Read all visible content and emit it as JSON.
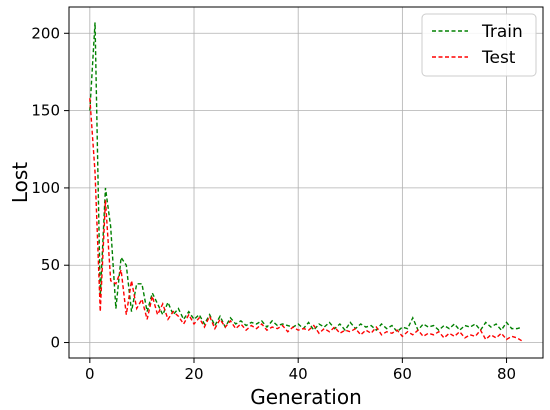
{
  "chart_data": {
    "type": "line",
    "xlabel": "Generation",
    "ylabel": "Lost",
    "xlim": [
      -4,
      87
    ],
    "ylim": [
      -10,
      217
    ],
    "xticks": [
      0,
      20,
      40,
      60,
      80
    ],
    "yticks": [
      0,
      50,
      100,
      150,
      200
    ],
    "grid": true,
    "legend_position": "top-right",
    "series": [
      {
        "name": "Train",
        "color": "#008000",
        "style": "dashed",
        "x": [
          0,
          1,
          2,
          3,
          4,
          5,
          6,
          7,
          8,
          9,
          10,
          11,
          12,
          13,
          14,
          15,
          16,
          17,
          18,
          19,
          20,
          21,
          22,
          23,
          24,
          25,
          26,
          27,
          28,
          29,
          30,
          31,
          32,
          33,
          34,
          35,
          36,
          37,
          38,
          39,
          40,
          41,
          42,
          43,
          44,
          45,
          46,
          47,
          48,
          49,
          50,
          51,
          52,
          53,
          54,
          55,
          56,
          57,
          58,
          59,
          60,
          61,
          62,
          63,
          64,
          65,
          66,
          67,
          68,
          69,
          70,
          71,
          72,
          73,
          74,
          75,
          76,
          77,
          78,
          79,
          80,
          81,
          82,
          83
        ],
        "values": [
          150,
          207,
          30,
          100,
          75,
          22,
          55,
          50,
          20,
          38,
          38,
          20,
          32,
          25,
          18,
          26,
          18,
          22,
          15,
          20,
          15,
          18,
          12,
          18,
          11,
          17,
          10,
          16,
          12,
          14,
          11,
          13,
          12,
          14,
          10,
          14,
          11,
          12,
          11,
          10,
          12,
          9,
          13,
          8,
          12,
          10,
          13,
          9,
          12,
          8,
          13,
          9,
          12,
          10,
          11,
          8,
          12,
          9,
          11,
          7,
          10,
          9,
          16,
          8,
          12,
          10,
          11,
          8,
          11,
          9,
          12,
          8,
          11,
          10,
          12,
          8,
          13,
          10,
          12,
          8,
          13,
          9,
          9,
          10
        ]
      },
      {
        "name": "Test",
        "color": "#ff0000",
        "style": "dashed",
        "x": [
          0,
          1,
          2,
          3,
          4,
          5,
          6,
          7,
          8,
          9,
          10,
          11,
          12,
          13,
          14,
          15,
          16,
          17,
          18,
          19,
          20,
          21,
          22,
          23,
          24,
          25,
          26,
          27,
          28,
          29,
          30,
          31,
          32,
          33,
          34,
          35,
          36,
          37,
          38,
          39,
          40,
          41,
          42,
          43,
          44,
          45,
          46,
          47,
          48,
          49,
          50,
          51,
          52,
          53,
          54,
          55,
          56,
          57,
          58,
          59,
          60,
          61,
          62,
          63,
          64,
          65,
          66,
          67,
          68,
          69,
          70,
          71,
          72,
          73,
          74,
          75,
          76,
          77,
          78,
          79,
          80,
          81,
          82,
          83
        ],
        "values": [
          158,
          110,
          20,
          92,
          40,
          38,
          47,
          18,
          40,
          22,
          28,
          15,
          30,
          18,
          25,
          15,
          20,
          17,
          12,
          18,
          12,
          16,
          10,
          17,
          9,
          15,
          10,
          14,
          9,
          12,
          8,
          11,
          9,
          12,
          8,
          10,
          9,
          11,
          7,
          10,
          8,
          9,
          8,
          11,
          6,
          9,
          7,
          10,
          6,
          8,
          7,
          9,
          5,
          8,
          6,
          10,
          5,
          7,
          6,
          8,
          4,
          7,
          5,
          8,
          4,
          6,
          5,
          7,
          3,
          6,
          4,
          7,
          3,
          5,
          4,
          8,
          2,
          5,
          3,
          6,
          2,
          4,
          3,
          1
        ]
      }
    ]
  }
}
